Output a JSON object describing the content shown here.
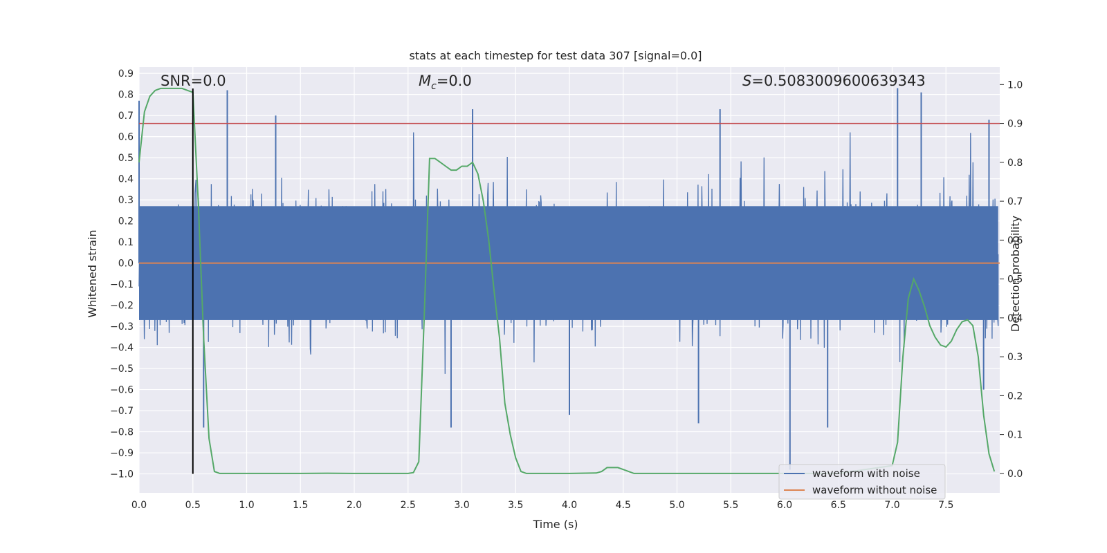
{
  "chart_data": {
    "type": "line",
    "title": "stats at each timestep for test data 307 [signal=0.0]",
    "xlabel": "Time (s)",
    "ylabel": "Whitened strain",
    "y2label": "Detection probability",
    "xlim": [
      0.0,
      8.0
    ],
    "ylim": [
      -1.09,
      0.93
    ],
    "y2lim": [
      -0.05,
      1.045
    ],
    "xticks": [
      0.0,
      0.5,
      1.0,
      1.5,
      2.0,
      2.5,
      3.0,
      3.5,
      4.0,
      4.5,
      5.0,
      5.5,
      6.0,
      6.5,
      7.0,
      7.5
    ],
    "xtick_labels": [
      "0.0",
      "0.5",
      "1.0",
      "1.5",
      "2.0",
      "2.5",
      "3.0",
      "3.5",
      "4.0",
      "4.5",
      "5.0",
      "5.5",
      "6.0",
      "6.5",
      "7.0",
      "7.5"
    ],
    "yticks": [
      -1.0,
      -0.9,
      -0.8,
      -0.7,
      -0.6,
      -0.5,
      -0.4,
      -0.3,
      -0.2,
      -0.1,
      0.0,
      0.1,
      0.2,
      0.3,
      0.4,
      0.5,
      0.6,
      0.7,
      0.8,
      0.9
    ],
    "ytick_labels": [
      "−1.0",
      "−0.9",
      "−0.8",
      "−0.7",
      "−0.6",
      "−0.5",
      "−0.4",
      "−0.3",
      "−0.2",
      "−0.1",
      "0.0",
      "0.1",
      "0.2",
      "0.3",
      "0.4",
      "0.5",
      "0.6",
      "0.7",
      "0.8",
      "0.9"
    ],
    "y2ticks": [
      0.0,
      0.1,
      0.2,
      0.3,
      0.4,
      0.5,
      0.6,
      0.7,
      0.8,
      0.9,
      1.0
    ],
    "y2tick_labels": [
      "0.0",
      "0.1",
      "0.2",
      "0.3",
      "0.4",
      "0.5",
      "0.6",
      "0.7",
      "0.8",
      "0.9",
      "1.0"
    ],
    "grid": true,
    "annotations": {
      "snr": "SNR=0.0",
      "mc_symbol": "M",
      "mc_sub": "c",
      "mc_value": "=0.0",
      "s_symbol": "S",
      "s_value": "=0.5083009600639343"
    },
    "threshold": 0.9,
    "marker_time": 0.5,
    "noise": {
      "name": "waveform with noise",
      "color": "#4c72b0",
      "description": "dense noise trace, bulk roughly within ±0.27, spikes to ~0.83 and ~-0.98",
      "spikes": [
        {
          "x": 0.0,
          "y": 0.77
        },
        {
          "x": 0.82,
          "y": 0.82
        },
        {
          "x": 1.27,
          "y": 0.7
        },
        {
          "x": 3.1,
          "y": 0.73
        },
        {
          "x": 5.4,
          "y": 0.73
        },
        {
          "x": 7.05,
          "y": 0.83
        },
        {
          "x": 7.27,
          "y": 0.81
        },
        {
          "x": 7.9,
          "y": 0.68
        },
        {
          "x": 0.6,
          "y": -0.78
        },
        {
          "x": 2.9,
          "y": -0.78
        },
        {
          "x": 4.0,
          "y": -0.72
        },
        {
          "x": 5.2,
          "y": -0.76
        },
        {
          "x": 6.05,
          "y": -0.98
        },
        {
          "x": 6.4,
          "y": -0.78
        },
        {
          "x": 7.85,
          "y": -0.6
        }
      ]
    },
    "clean": {
      "name": "waveform without noise",
      "color": "#dd8452",
      "value": 0.0
    },
    "probability": {
      "name": "detection probability",
      "color": "#55a868",
      "x": [
        0.0,
        0.05,
        0.1,
        0.15,
        0.2,
        0.3,
        0.35,
        0.4,
        0.45,
        0.5,
        0.55,
        0.6,
        0.65,
        0.7,
        0.75,
        0.8,
        1.0,
        1.5,
        1.75,
        2.0,
        2.5,
        2.55,
        2.6,
        2.65,
        2.7,
        2.75,
        2.8,
        2.85,
        2.9,
        2.95,
        3.0,
        3.05,
        3.1,
        3.15,
        3.2,
        3.25,
        3.3,
        3.35,
        3.4,
        3.45,
        3.5,
        3.55,
        3.6,
        4.0,
        4.25,
        4.3,
        4.35,
        4.4,
        4.45,
        4.5,
        4.6,
        5.0,
        6.0,
        6.5,
        7.0,
        7.05,
        7.1,
        7.15,
        7.2,
        7.25,
        7.3,
        7.35,
        7.4,
        7.45,
        7.5,
        7.55,
        7.6,
        7.65,
        7.7,
        7.75,
        7.8,
        7.85,
        7.9,
        7.95
      ],
      "y": [
        0.8,
        0.93,
        0.97,
        0.985,
        0.99,
        0.99,
        0.99,
        0.99,
        0.985,
        0.98,
        0.7,
        0.35,
        0.09,
        0.005,
        0.0,
        0.0,
        0.0,
        0.0,
        0.0005,
        0.0,
        0.0,
        0.002,
        0.03,
        0.4,
        0.81,
        0.81,
        0.8,
        0.79,
        0.78,
        0.78,
        0.79,
        0.79,
        0.8,
        0.77,
        0.7,
        0.6,
        0.47,
        0.35,
        0.18,
        0.1,
        0.04,
        0.005,
        0.0,
        0.0,
        0.001,
        0.005,
        0.015,
        0.015,
        0.015,
        0.01,
        0.0,
        0.0,
        0.0,
        0.0,
        0.02,
        0.08,
        0.3,
        0.45,
        0.5,
        0.47,
        0.43,
        0.38,
        0.35,
        0.33,
        0.325,
        0.34,
        0.37,
        0.39,
        0.395,
        0.38,
        0.3,
        0.15,
        0.05,
        0.005
      ]
    },
    "legend": {
      "placement": "lower-right",
      "entries": [
        {
          "label": "waveform with noise",
          "color": "#4c72b0"
        },
        {
          "label": "waveform without noise",
          "color": "#dd8452"
        }
      ]
    }
  }
}
